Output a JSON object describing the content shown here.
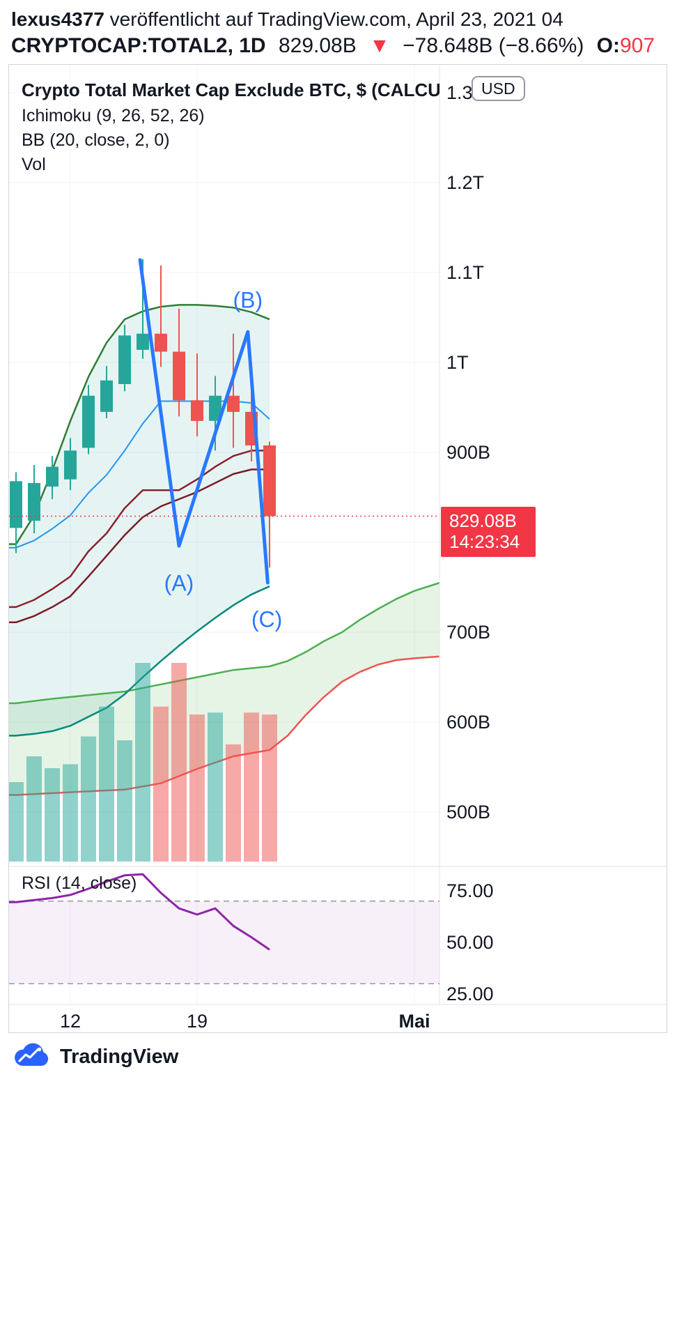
{
  "header": {
    "line1": {
      "username": "lexus4377",
      "rest": " veröffentlicht auf TradingView.com, April 23, 2021 04"
    },
    "line2": {
      "symbol": "CRYPTOCAP:TOTAL2, 1D",
      "price": "829.08B",
      "arrow": "▼",
      "change": "−78.648B (−8.66%)",
      "open_label": "O:",
      "open_value": "907"
    }
  },
  "legend": {
    "title": "Crypto Total Market Cap Exclude BTC, $ (CALCU",
    "ichimoku": "Ichimoku (9, 26, 52, 26)",
    "bb": "BB (20, close, 2, 0)",
    "vol": "Vol"
  },
  "usd_badge": "USD",
  "price_tag": {
    "value": "829.08B",
    "countdown": "14:23:34",
    "bg": "#F23645"
  },
  "rsi_label": "RSI (14, close)",
  "footer": {
    "brand": "TradingView"
  },
  "chart_data": {
    "type": "candlestick",
    "symbol": "CRYPTOCAP:TOTAL2",
    "interval": "1D",
    "unit": "USD billions",
    "title": "Crypto Total Market Cap Exclude BTC, $ (CALCU",
    "dates": [
      "2021-04-09",
      "2021-04-10",
      "2021-04-11",
      "2021-04-12",
      "2021-04-13",
      "2021-04-14",
      "2021-04-15",
      "2021-04-16",
      "2021-04-17",
      "2021-04-18",
      "2021-04-19",
      "2021-04-20",
      "2021-04-21",
      "2021-04-22",
      "2021-04-23"
    ],
    "candles": [
      [
        816,
        878,
        788,
        868
      ],
      [
        824,
        886,
        810,
        866
      ],
      [
        862,
        896,
        848,
        884
      ],
      [
        870,
        916,
        858,
        902
      ],
      [
        905,
        975,
        898,
        963
      ],
      [
        945,
        996,
        938,
        980
      ],
      [
        976,
        1042,
        968,
        1030
      ],
      [
        1014,
        1115,
        1004,
        1032
      ],
      [
        1032,
        1108,
        995,
        1012
      ],
      [
        1012,
        1060,
        940,
        958
      ],
      [
        958,
        1010,
        918,
        935
      ],
      [
        935,
        985,
        902,
        963
      ],
      [
        963,
        1032,
        905,
        945
      ],
      [
        945,
        970,
        890,
        907.73
      ],
      [
        907.73,
        912,
        772,
        829.08
      ]
    ],
    "colors": {
      "up": "#26A69A",
      "down": "#EF5350"
    },
    "last_price": 829.08,
    "price_line_color": "#F23645",
    "volume": {
      "scale": "relative (max = 100)",
      "values": [
        40,
        53,
        47,
        49,
        63,
        78,
        61,
        100,
        78,
        100,
        74,
        75,
        59,
        75,
        74
      ],
      "colors": {
        "up": "rgba(38,166,154,0.5)",
        "down": "rgba(239,83,80,0.5)"
      }
    },
    "price_axis": {
      "range_B": [
        440,
        1310
      ],
      "ticks": [
        {
          "label": "1.3T",
          "value": 1300
        },
        {
          "label": "1.2T",
          "value": 1200
        },
        {
          "label": "1.1T",
          "value": 1100
        },
        {
          "label": "1T",
          "value": 1000
        },
        {
          "label": "900B",
          "value": 900
        },
        {
          "label": "800B",
          "value": 800
        },
        {
          "label": "700B",
          "value": 700
        },
        {
          "label": "600B",
          "value": 600
        },
        {
          "label": "500B",
          "value": 500
        }
      ]
    },
    "time_axis": {
      "ticks": [
        {
          "label": "12",
          "index": 3,
          "bold": false
        },
        {
          "label": "19",
          "index": 10,
          "bold": false
        },
        {
          "label": "Mai",
          "index": 22,
          "bold": true
        }
      ]
    },
    "overlays": {
      "lines": [
        {
          "name": "kumo-future-top",
          "color": "#4CAF50",
          "width": 2.5,
          "points": [
            [
              0,
              621
            ],
            [
              2,
              626
            ],
            [
              4,
              630
            ],
            [
              6,
              634
            ],
            [
              8,
              642
            ],
            [
              10,
              650
            ],
            [
              12,
              658
            ],
            [
              14,
              662
            ],
            [
              15,
              668
            ],
            [
              16,
              678
            ],
            [
              17,
              690
            ],
            [
              18,
              700
            ],
            [
              19,
              714
            ],
            [
              20,
              726
            ],
            [
              21,
              737
            ],
            [
              22,
              746
            ],
            [
              23.4,
              755
            ]
          ]
        },
        {
          "name": "kumo-future-bottom",
          "color": "#EF5350",
          "width": 2.5,
          "points": [
            [
              0,
              519
            ],
            [
              2,
              521
            ],
            [
              4,
              523
            ],
            [
              6,
              525
            ],
            [
              8,
              532
            ],
            [
              10,
              548
            ],
            [
              12,
              562
            ],
            [
              14,
              569
            ],
            [
              15,
              585
            ],
            [
              16,
              608
            ],
            [
              17,
              628
            ],
            [
              18,
              645
            ],
            [
              19,
              656
            ],
            [
              20,
              664
            ],
            [
              21,
              669
            ],
            [
              22,
              671
            ],
            [
              23.4,
              673
            ]
          ]
        },
        {
          "name": "senkou-a-current",
          "color": "#2E7D32",
          "width": 2.5,
          "points": [
            [
              0,
              798
            ],
            [
              1,
              830
            ],
            [
              2,
              880
            ],
            [
              3,
              935
            ],
            [
              4,
              984
            ],
            [
              5,
              1022
            ],
            [
              6,
              1048
            ],
            [
              7,
              1057
            ],
            [
              8,
              1062
            ],
            [
              9,
              1064
            ],
            [
              10,
              1064
            ],
            [
              11,
              1063
            ],
            [
              12,
              1061
            ],
            [
              13,
              1056
            ],
            [
              14,
              1048
            ]
          ]
        },
        {
          "name": "senkou-b-current",
          "color": "#00897B",
          "width": 2.5,
          "points": [
            [
              0,
              585
            ],
            [
              1,
              587
            ],
            [
              2,
              590
            ],
            [
              3,
              596
            ],
            [
              4,
              606
            ],
            [
              5,
              616
            ],
            [
              6,
              631
            ],
            [
              7,
              650
            ],
            [
              8,
              668
            ],
            [
              9,
              685
            ],
            [
              10,
              701
            ],
            [
              11,
              716
            ],
            [
              12,
              730
            ],
            [
              13,
              742
            ],
            [
              14,
              751
            ]
          ]
        },
        {
          "name": "base-line",
          "color": "#8C1F2D",
          "width": 2.5,
          "points": [
            [
              0,
              728
            ],
            [
              1,
              736
            ],
            [
              2,
              748
            ],
            [
              3,
              762
            ],
            [
              4,
              790
            ],
            [
              5,
              810
            ],
            [
              6,
              838
            ],
            [
              7,
              858
            ],
            [
              8,
              858
            ],
            [
              9,
              858
            ],
            [
              10,
              870
            ],
            [
              11,
              884
            ],
            [
              12,
              896
            ],
            [
              13,
              902
            ],
            [
              14,
              902
            ]
          ]
        },
        {
          "name": "bb-basis",
          "color": "#7A1B28",
          "width": 2.5,
          "points": [
            [
              0,
              711
            ],
            [
              1,
              718
            ],
            [
              2,
              728
            ],
            [
              3,
              740
            ],
            [
              4,
              762
            ],
            [
              5,
              785
            ],
            [
              6,
              808
            ],
            [
              7,
              828
            ],
            [
              8,
              840
            ],
            [
              9,
              848
            ],
            [
              10,
              856
            ],
            [
              11,
              866
            ],
            [
              12,
              876
            ],
            [
              13,
              881
            ],
            [
              14,
              881
            ]
          ]
        },
        {
          "name": "conversion-line",
          "color": "#2196F3",
          "width": 2,
          "points": [
            [
              0,
              794
            ],
            [
              1,
              802
            ],
            [
              2,
              815
            ],
            [
              3,
              830
            ],
            [
              4,
              855
            ],
            [
              5,
              875
            ],
            [
              6,
              902
            ],
            [
              7,
              932
            ],
            [
              8,
              957
            ],
            [
              9,
              957
            ],
            [
              10,
              957
            ],
            [
              11,
              957
            ],
            [
              12,
              957
            ],
            [
              13,
              955
            ],
            [
              14,
              937
            ]
          ]
        }
      ],
      "fills": [
        {
          "name": "kumo-current",
          "top": "senkou-a-current",
          "bottom": "senkou-b-current",
          "color": "rgba(38,166,154,0.12)"
        },
        {
          "name": "kumo-future",
          "top": "kumo-future-top",
          "bottom": "kumo-future-bottom",
          "color": "rgba(76,175,80,0.14)"
        }
      ]
    },
    "annotation": {
      "color": "#2979FF",
      "width": 5,
      "points": [
        [
          6.85,
          1114
        ],
        [
          9,
          796
        ],
        [
          12.8,
          1034
        ],
        [
          13.9,
          755
        ]
      ],
      "labels": [
        {
          "text": "(A)",
          "i": 9,
          "p": 746
        },
        {
          "text": "(B)",
          "i": 12.8,
          "p": 1061
        },
        {
          "text": "(C)",
          "i": 13.85,
          "p": 706
        }
      ]
    },
    "rsi": {
      "values": [
        69.5,
        70.5,
        71.5,
        73,
        76,
        79.5,
        82.5,
        83,
        74,
        66.5,
        63.5,
        66.5,
        58,
        52.5,
        46.5
      ],
      "color": "#8E24AA",
      "upper": 70,
      "lower": 30,
      "band_color": "rgba(142,36,170,0.07)",
      "ticks": [
        {
          "label": "75.00",
          "value": 75
        },
        {
          "label": "50.00",
          "value": 50
        },
        {
          "label": "25.00",
          "value": 25
        }
      ]
    }
  }
}
